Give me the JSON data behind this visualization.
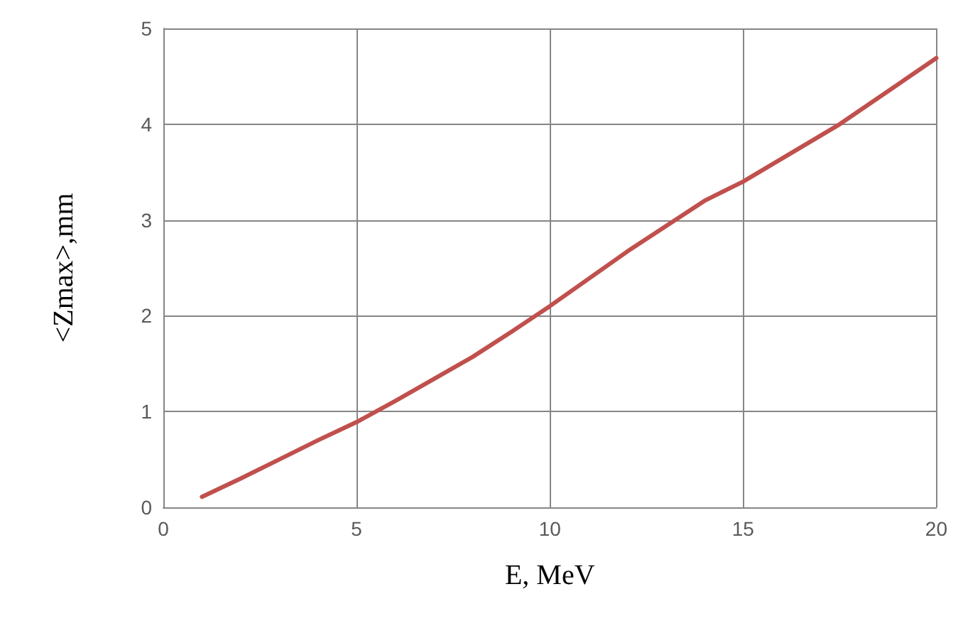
{
  "chart_data": {
    "type": "line",
    "xlabel": "E, MeV",
    "ylabel": "<Zmax>,mm",
    "x": [
      1,
      2,
      3,
      4,
      5,
      6,
      7,
      8,
      9,
      10,
      12,
      14,
      15,
      17.5,
      20
    ],
    "series": [
      {
        "color": "#c0504d",
        "values": [
          0.11,
          0.3,
          0.5,
          0.7,
          0.89,
          1.11,
          1.34,
          1.57,
          1.83,
          2.1,
          2.67,
          3.2,
          3.4,
          4.0,
          4.69
        ]
      }
    ],
    "xlim": [
      0,
      20
    ],
    "xticks": [
      0,
      5,
      10,
      15,
      20
    ],
    "ylim": [
      0,
      5
    ],
    "yticks": [
      0,
      1,
      2,
      3,
      4,
      5
    ],
    "grid": true,
    "marker": "none",
    "line_style": "solid"
  }
}
